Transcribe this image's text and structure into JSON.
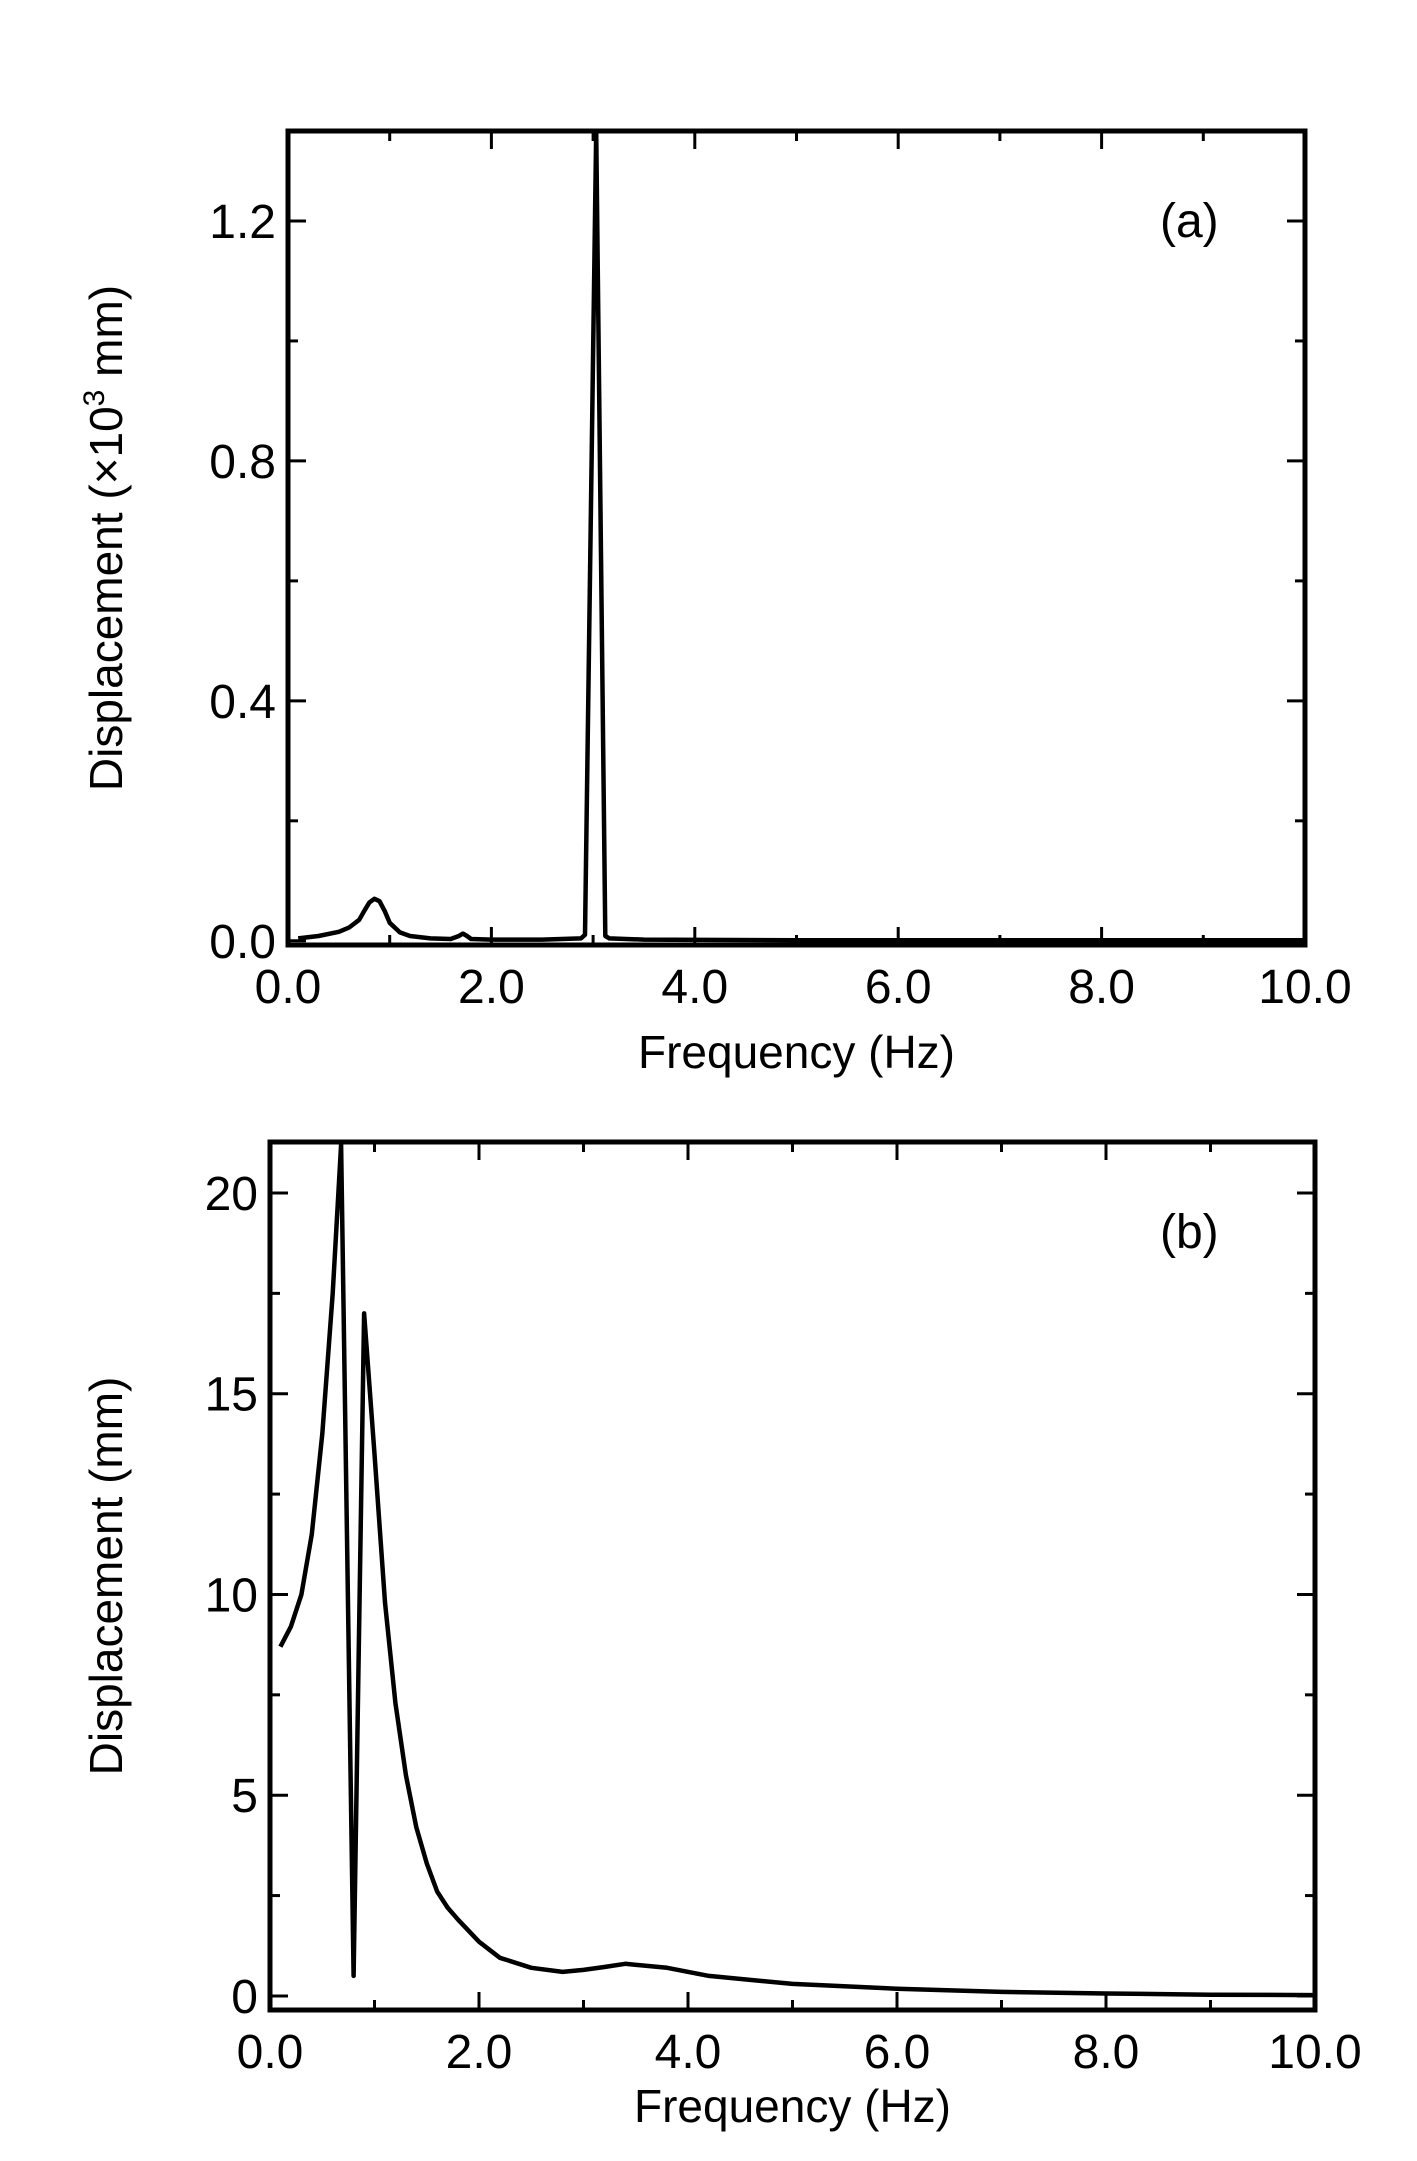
{
  "chart_data": [
    {
      "type": "line",
      "panel_label": "(a)",
      "xlabel": "Frequency (Hz)",
      "ylabel": "Displacement (×10",
      "ylabel_sup": "3",
      "ylabel_suffix": " mm)",
      "xlim": [
        0,
        10
      ],
      "ylim": [
        -0.007,
        1.35
      ],
      "xticks": [
        0,
        2,
        4,
        6,
        8,
        10
      ],
      "xtick_labels": [
        "0.0",
        "2.0",
        "4.0",
        "6.0",
        "8.0",
        "10.0"
      ],
      "yticks": [
        0,
        0.4,
        0.8,
        1.2
      ],
      "ytick_labels": [
        "0.0",
        "0.4",
        "0.8",
        "1.2"
      ],
      "xminor": [
        1,
        3,
        5,
        7,
        9
      ],
      "yminor": [
        0.2,
        0.6,
        1.0
      ],
      "grid": false,
      "color": "#000000",
      "series": [
        {
          "name": "displacement",
          "x": [
            0.1,
            0.3,
            0.5,
            0.6,
            0.7,
            0.75,
            0.8,
            0.85,
            0.9,
            0.95,
            1.0,
            1.1,
            1.2,
            1.4,
            1.6,
            1.68,
            1.72,
            1.76,
            1.8,
            2.0,
            2.5,
            2.88,
            2.92,
            3.03,
            3.12,
            3.16,
            3.5,
            5,
            7,
            10
          ],
          "y": [
            0.004,
            0.008,
            0.015,
            0.022,
            0.035,
            0.05,
            0.064,
            0.07,
            0.066,
            0.05,
            0.03,
            0.014,
            0.008,
            0.004,
            0.003,
            0.008,
            0.012,
            0.008,
            0.003,
            0.002,
            0.002,
            0.004,
            0.01,
            1.35,
            0.008,
            0.004,
            0.002,
            0.001,
            0.001,
            0.001
          ]
        }
      ]
    },
    {
      "type": "line",
      "panel_label": "(b)",
      "xlabel": "Frequency (Hz)",
      "ylabel": "Displacement (mm)",
      "xlim": [
        0,
        10
      ],
      "ylim": [
        -0.35,
        21.27
      ],
      "xticks": [
        0,
        2,
        4,
        6,
        8,
        10
      ],
      "xtick_labels": [
        "0.0",
        "2.0",
        "4.0",
        "6.0",
        "8.0",
        "10.0"
      ],
      "yticks": [
        0,
        5,
        10,
        15,
        20
      ],
      "ytick_labels": [
        "0",
        "5",
        "10",
        "15",
        "20"
      ],
      "xminor": [
        1,
        3,
        5,
        7,
        9
      ],
      "yminor": [
        2.5,
        7.5,
        12.5,
        17.5
      ],
      "grid": false,
      "color": "#000000",
      "series": [
        {
          "name": "displacement",
          "x": [
            0.1,
            0.2,
            0.3,
            0.4,
            0.5,
            0.6,
            0.68,
            0.8,
            0.9,
            1.0,
            1.1,
            1.2,
            1.3,
            1.4,
            1.5,
            1.6,
            1.7,
            1.8,
            2.0,
            2.2,
            2.5,
            2.8,
            3.0,
            3.2,
            3.4,
            3.8,
            4.2,
            5,
            6,
            7,
            8,
            9,
            10
          ],
          "y": [
            8.7,
            9.2,
            10.0,
            11.5,
            14.0,
            17.5,
            21.2,
            0.5,
            17.0,
            13.5,
            9.8,
            7.3,
            5.5,
            4.2,
            3.3,
            2.6,
            2.2,
            1.9,
            1.35,
            0.95,
            0.7,
            0.6,
            0.65,
            0.72,
            0.8,
            0.7,
            0.5,
            0.3,
            0.18,
            0.1,
            0.06,
            0.03,
            0.02
          ]
        }
      ]
    }
  ]
}
